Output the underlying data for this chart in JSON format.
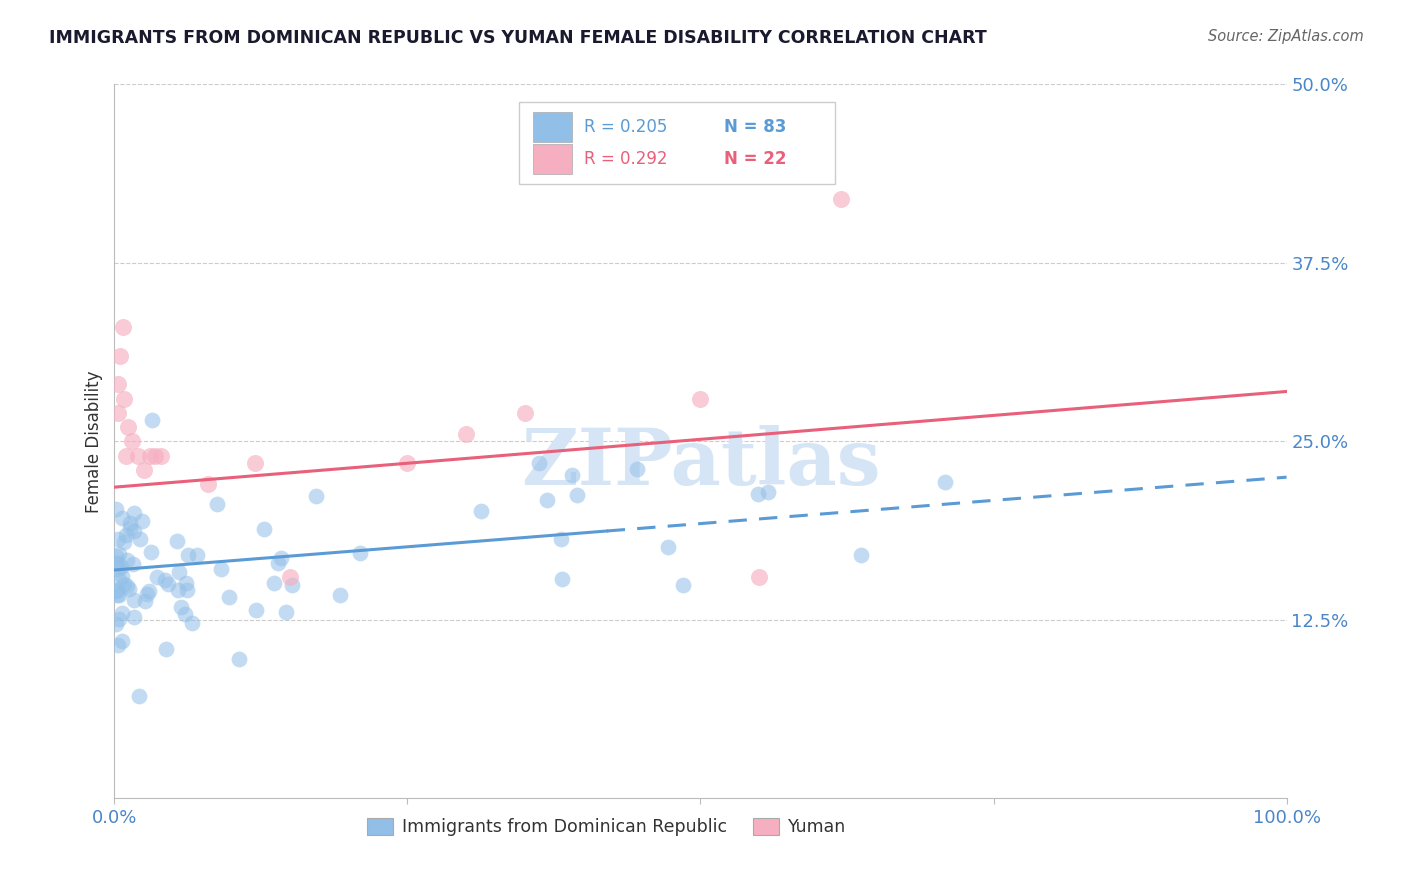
{
  "title": "IMMIGRANTS FROM DOMINICAN REPUBLIC VS YUMAN FEMALE DISABILITY CORRELATION CHART",
  "source": "Source: ZipAtlas.com",
  "ylabel": "Female Disability",
  "xlim": [
    0.0,
    1.0
  ],
  "ylim": [
    0.0,
    0.5
  ],
  "x_tick_positions": [
    0.0,
    0.25,
    0.5,
    0.75,
    1.0
  ],
  "x_tick_labels": [
    "0.0%",
    "",
    "",
    "",
    "100.0%"
  ],
  "y_tick_positions": [
    0.0,
    0.125,
    0.25,
    0.375,
    0.5
  ],
  "y_tick_labels": [
    "",
    "12.5%",
    "25.0%",
    "37.5%",
    "50.0%"
  ],
  "blue_color": "#92bfe8",
  "blue_edge_color": "#92bfe8",
  "pink_color": "#f5afc0",
  "pink_edge_color": "#f5afc0",
  "trendline_blue": "#5b9bd5",
  "trendline_pink": "#e8607a",
  "watermark_color": "#d5e5f5",
  "background_color": "#ffffff",
  "grid_color": "#cccccc",
  "tick_color": "#4a86c8",
  "title_color": "#1a1a2e",
  "source_color": "#666666",
  "ylabel_color": "#333333",
  "legend_label1": "Immigrants from Dominican Republic",
  "legend_label2": "Yuman"
}
